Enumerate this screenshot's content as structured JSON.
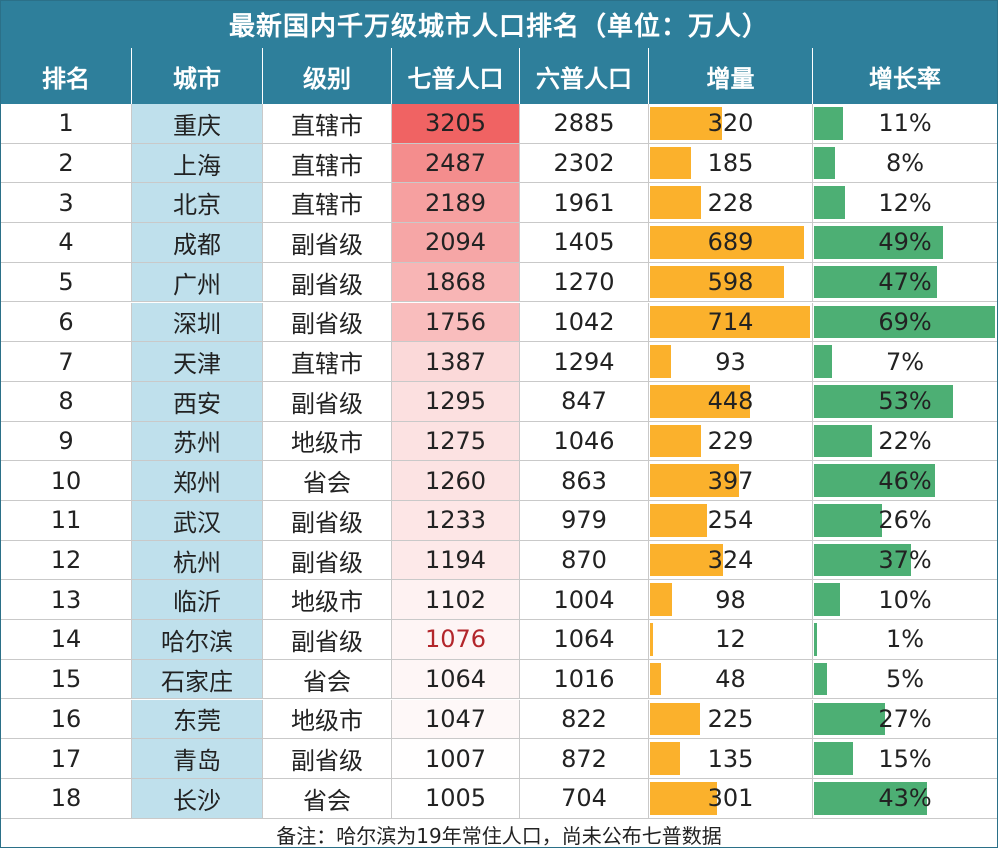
{
  "title": "最新国内千万级城市人口排名（单位：万人）",
  "columns": [
    "排名",
    "城市",
    "级别",
    "七普人口",
    "六普人口",
    "增量",
    "增长率"
  ],
  "rows": [
    {
      "rank": "1",
      "city": "重庆",
      "level": "直辖市",
      "pop7": "3205",
      "pop6": "2885",
      "inc": "320",
      "rate": "11%"
    },
    {
      "rank": "2",
      "city": "上海",
      "level": "直辖市",
      "pop7": "2487",
      "pop6": "2302",
      "inc": "185",
      "rate": "8%"
    },
    {
      "rank": "3",
      "city": "北京",
      "level": "直辖市",
      "pop7": "2189",
      "pop6": "1961",
      "inc": "228",
      "rate": "12%"
    },
    {
      "rank": "4",
      "city": "成都",
      "level": "副省级",
      "pop7": "2094",
      "pop6": "1405",
      "inc": "689",
      "rate": "49%"
    },
    {
      "rank": "5",
      "city": "广州",
      "level": "副省级",
      "pop7": "1868",
      "pop6": "1270",
      "inc": "598",
      "rate": "47%"
    },
    {
      "rank": "6",
      "city": "深圳",
      "level": "副省级",
      "pop7": "1756",
      "pop6": "1042",
      "inc": "714",
      "rate": "69%"
    },
    {
      "rank": "7",
      "city": "天津",
      "level": "直辖市",
      "pop7": "1387",
      "pop6": "1294",
      "inc": "93",
      "rate": "7%"
    },
    {
      "rank": "8",
      "city": "西安",
      "level": "副省级",
      "pop7": "1295",
      "pop6": "847",
      "inc": "448",
      "rate": "53%"
    },
    {
      "rank": "9",
      "city": "苏州",
      "level": "地级市",
      "pop7": "1275",
      "pop6": "1046",
      "inc": "229",
      "rate": "22%"
    },
    {
      "rank": "10",
      "city": "郑州",
      "level": "省会",
      "pop7": "1260",
      "pop6": "863",
      "inc": "397",
      "rate": "46%"
    },
    {
      "rank": "11",
      "city": "武汉",
      "level": "副省级",
      "pop7": "1233",
      "pop6": "979",
      "inc": "254",
      "rate": "26%"
    },
    {
      "rank": "12",
      "city": "杭州",
      "level": "副省级",
      "pop7": "1194",
      "pop6": "870",
      "inc": "324",
      "rate": "37%"
    },
    {
      "rank": "13",
      "city": "临沂",
      "level": "地级市",
      "pop7": "1102",
      "pop6": "1004",
      "inc": "98",
      "rate": "10%"
    },
    {
      "rank": "14",
      "city": "哈尔滨",
      "level": "副省级",
      "pop7": "1076",
      "pop6": "1064",
      "inc": "12",
      "rate": "1%",
      "highlight": true
    },
    {
      "rank": "15",
      "city": "石家庄",
      "level": "省会",
      "pop7": "1064",
      "pop6": "1016",
      "inc": "48",
      "rate": "5%"
    },
    {
      "rank": "16",
      "city": "东莞",
      "level": "地级市",
      "pop7": "1047",
      "pop6": "822",
      "inc": "225",
      "rate": "27%"
    },
    {
      "rank": "17",
      "city": "青岛",
      "level": "副省级",
      "pop7": "1007",
      "pop6": "872",
      "inc": "135",
      "rate": "15%"
    },
    {
      "rank": "18",
      "city": "长沙",
      "level": "省会",
      "pop7": "1005",
      "pop6": "704",
      "inc": "301",
      "rate": "43%"
    }
  ],
  "footnote": "备注：哈尔滨为19年常住人口，尚未公布七普数据",
  "colors": {
    "header_bg": "#2e7f9b",
    "city_bg": "#bfe0ec",
    "pop_scale_high": "#ef5b5b",
    "increase_bar": "#fbb12c",
    "rate_bar": "#4daf74",
    "highlight_text": "#b3262b"
  }
}
